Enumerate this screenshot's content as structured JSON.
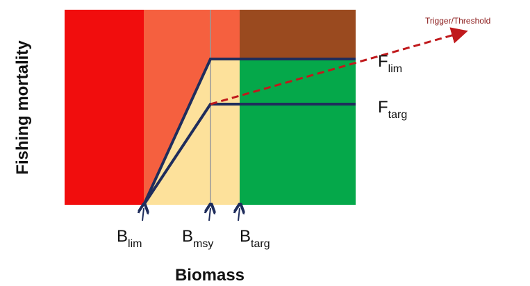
{
  "y_axis_label": "Fishing mortality",
  "x_axis_label": "Biomass",
  "trigger_label": "Trigger/Threshold",
  "f_labels": [
    {
      "main": "F",
      "sub": "lim"
    },
    {
      "main": "F",
      "sub": "targ"
    }
  ],
  "b_labels": [
    {
      "main": "B",
      "sub": "lim"
    },
    {
      "main": "B",
      "sub": "msy"
    },
    {
      "main": "B",
      "sub": "targ"
    }
  ]
}
